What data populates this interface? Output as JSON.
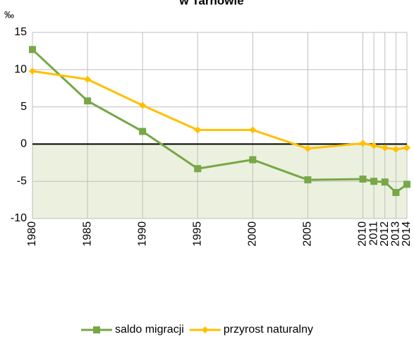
{
  "chart_data": {
    "type": "line",
    "title": "w Tarnowie",
    "ylabel": "‰",
    "x": [
      1980,
      1985,
      1990,
      1995,
      2000,
      2005,
      2010,
      2011,
      2012,
      2013,
      2014
    ],
    "xlim": [
      1980,
      2014
    ],
    "xticks": [
      1980,
      1985,
      1990,
      1995,
      2000,
      2005,
      2010,
      2011,
      2012,
      2013,
      2014
    ],
    "ylim": [
      -10,
      15
    ],
    "yticks": [
      -10,
      -5,
      0,
      5,
      10,
      15
    ],
    "grid": true,
    "legend": "bottom",
    "series": [
      {
        "name": "saldo migracji",
        "color": "#77a747",
        "marker": "square",
        "values": [
          12.7,
          5.8,
          1.7,
          -3.3,
          -2.1,
          -4.8,
          -4.7,
          -5.0,
          -5.1,
          -6.5,
          -5.4
        ]
      },
      {
        "name": "przyrost naturalny",
        "color": "#ffc000",
        "marker": "diamond",
        "values": [
          9.8,
          8.7,
          5.2,
          1.9,
          1.9,
          -0.6,
          0.1,
          -0.2,
          -0.5,
          -0.7,
          -0.5
        ]
      }
    ]
  }
}
